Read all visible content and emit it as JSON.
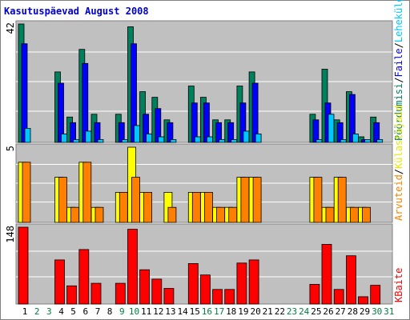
{
  "title": "Kasutuspäevad August 2008",
  "days": [
    "1",
    "2",
    "3",
    "4",
    "5",
    "6",
    "7",
    "8",
    "9",
    "10",
    "11",
    "12",
    "13",
    "14",
    "15",
    "16",
    "17",
    "18",
    "19",
    "20",
    "21",
    "22",
    "23",
    "24",
    "25",
    "26",
    "27",
    "28",
    "29",
    "30",
    "31"
  ],
  "weekend_days": [
    "2",
    "3",
    "9",
    "10",
    "16",
    "17",
    "23",
    "24",
    "30",
    "31"
  ],
  "colors": {
    "page_bg": "#ffffff",
    "frame": "#808080",
    "plot_bg": "#c0c0c0",
    "grid": "#ffffff",
    "title": "#0000cc",
    "weekday_label": "#000000",
    "weekend_label": "#008040",
    "pagecounts": "#00805c",
    "files": "#0000ff",
    "hits": "#00c8ff",
    "visits": "#ff8000",
    "sites": "#ffff00",
    "kbytes": "#ff0000"
  },
  "right_legend": {
    "top": {
      "pagecounts": "Pöördumisi",
      "sep1": "/",
      "files": "Faile",
      "sep2": "/",
      "hits": "Lehekülgi"
    },
    "middle": {
      "sites": "Külastajaid",
      "sep": "/",
      "visits": "Arvuteid"
    },
    "bottom": {
      "kbytes": "KBaite"
    }
  },
  "chart_data": [
    {
      "type": "bar",
      "panel": "top",
      "ymax_label": "42",
      "ylim": [
        0,
        42
      ],
      "grid": true,
      "categories": [
        "1",
        "2",
        "3",
        "4",
        "5",
        "6",
        "7",
        "8",
        "9",
        "10",
        "11",
        "12",
        "13",
        "14",
        "15",
        "16",
        "17",
        "18",
        "19",
        "20",
        "21",
        "22",
        "23",
        "24",
        "25",
        "26",
        "27",
        "28",
        "29",
        "30",
        "31"
      ],
      "series": [
        {
          "key": "pagecounts",
          "name": "Pöördumisi",
          "values": [
            42,
            0,
            0,
            25,
            9,
            33,
            10,
            0,
            10,
            41,
            18,
            16,
            8,
            0,
            20,
            16,
            8,
            8,
            20,
            25,
            0,
            0,
            0,
            0,
            10,
            26,
            8,
            18,
            2,
            9,
            0
          ]
        },
        {
          "key": "files",
          "name": "Faile",
          "values": [
            35,
            0,
            0,
            21,
            7,
            28,
            7,
            0,
            7,
            35,
            10,
            12,
            7,
            0,
            14,
            14,
            7,
            7,
            14,
            21,
            0,
            0,
            0,
            0,
            8,
            14,
            7,
            17,
            1,
            7,
            0
          ]
        },
        {
          "key": "hits",
          "name": "Lehekülgi",
          "values": [
            5,
            0,
            0,
            3,
            1,
            4,
            1,
            0,
            1,
            6,
            3,
            2,
            1,
            0,
            2,
            2,
            1,
            1,
            4,
            3,
            0,
            0,
            0,
            0,
            1,
            10,
            1,
            3,
            1,
            1,
            0
          ]
        }
      ]
    },
    {
      "type": "bar",
      "panel": "middle",
      "ymax_label": "5",
      "ylim": [
        0,
        5
      ],
      "grid": true,
      "categories": [
        "1",
        "2",
        "3",
        "4",
        "5",
        "6",
        "7",
        "8",
        "9",
        "10",
        "11",
        "12",
        "13",
        "14",
        "15",
        "16",
        "17",
        "18",
        "19",
        "20",
        "21",
        "22",
        "23",
        "24",
        "25",
        "26",
        "27",
        "28",
        "29",
        "30",
        "31"
      ],
      "series": [
        {
          "key": "sites",
          "name": "Külastajaid",
          "values": [
            4,
            0,
            0,
            3,
            1,
            4,
            1,
            0,
            2,
            5,
            2,
            0,
            2,
            0,
            2,
            2,
            1,
            1,
            3,
            3,
            0,
            0,
            0,
            0,
            3,
            1,
            3,
            1,
            1,
            0,
            0
          ]
        },
        {
          "key": "visits",
          "name": "Arvuteid",
          "values": [
            4,
            0,
            0,
            3,
            1,
            4,
            1,
            0,
            2,
            3,
            2,
            0,
            1,
            0,
            2,
            2,
            1,
            1,
            3,
            3,
            0,
            0,
            0,
            0,
            3,
            1,
            3,
            1,
            1,
            0,
            0
          ]
        }
      ]
    },
    {
      "type": "bar",
      "panel": "bottom",
      "ymax_label": "148",
      "ylim": [
        0,
        148
      ],
      "grid": true,
      "categories": [
        "1",
        "2",
        "3",
        "4",
        "5",
        "6",
        "7",
        "8",
        "9",
        "10",
        "11",
        "12",
        "13",
        "14",
        "15",
        "16",
        "17",
        "18",
        "19",
        "20",
        "21",
        "22",
        "23",
        "24",
        "25",
        "26",
        "27",
        "28",
        "29",
        "30",
        "31"
      ],
      "series": [
        {
          "key": "kbytes",
          "name": "KBaite",
          "values": [
            148,
            0,
            0,
            85,
            35,
            105,
            40,
            0,
            40,
            144,
            66,
            48,
            30,
            0,
            78,
            56,
            28,
            28,
            79,
            85,
            0,
            0,
            0,
            0,
            38,
            115,
            28,
            93,
            14,
            36,
            0
          ]
        }
      ]
    }
  ]
}
